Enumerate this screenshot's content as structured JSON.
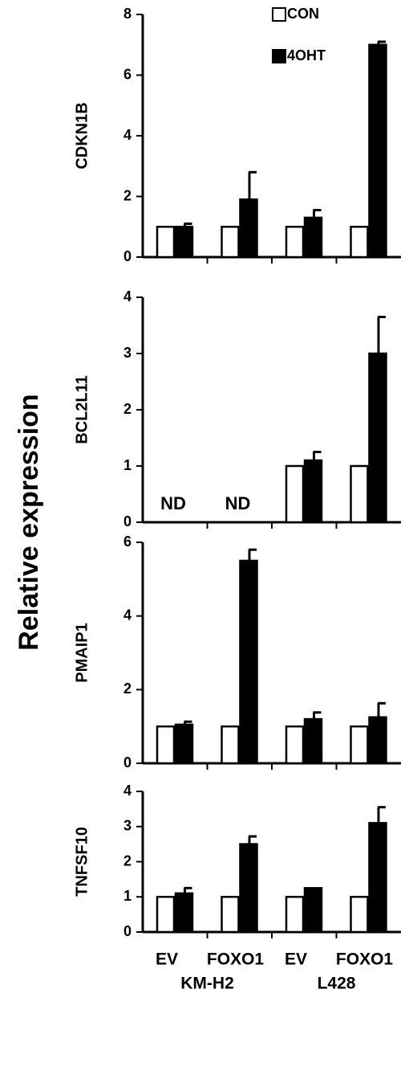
{
  "ylabel": "Relative expression",
  "chart_data": [
    {
      "type": "bar",
      "ylabel": "CDKN1B",
      "ylim": [
        0,
        8
      ],
      "yticks": [
        0,
        2,
        4,
        6,
        8
      ],
      "series": [
        {
          "name": "CON",
          "color": "#ffffff",
          "values": [
            1,
            1,
            1,
            1
          ]
        },
        {
          "name": "4OHT",
          "color": "#000000",
          "values": [
            1.0,
            1.9,
            1.3,
            7.0
          ],
          "errors": [
            0.1,
            0.9,
            0.25,
            0.1
          ]
        }
      ]
    },
    {
      "type": "bar",
      "ylabel": "BCL2L11",
      "ylim": [
        0,
        4
      ],
      "yticks": [
        0,
        1,
        2,
        3,
        4
      ],
      "annotations": [
        "ND",
        "ND"
      ],
      "series": [
        {
          "color": "#ffffff",
          "values": [
            null,
            null,
            1,
            1
          ]
        },
        {
          "color": "#000000",
          "values": [
            null,
            null,
            1.1,
            3.0
          ],
          "errors": [
            null,
            null,
            0.15,
            0.65
          ]
        }
      ]
    },
    {
      "type": "bar",
      "ylabel": "PMAIP1",
      "ylim": [
        0,
        6
      ],
      "yticks": [
        0,
        2,
        4,
        6
      ],
      "series": [
        {
          "color": "#ffffff",
          "values": [
            1,
            1,
            1,
            1
          ]
        },
        {
          "color": "#000000",
          "values": [
            1.05,
            5.5,
            1.2,
            1.25
          ],
          "errors": [
            0.08,
            0.3,
            0.18,
            0.38
          ]
        }
      ]
    },
    {
      "type": "bar",
      "ylabel": "TNFSF10",
      "ylim": [
        0,
        4
      ],
      "yticks": [
        0,
        1,
        2,
        3,
        4
      ],
      "categories": [
        "EV",
        "FOXO1",
        "EV",
        "FOXO1"
      ],
      "groups": [
        "KM-H2",
        "L428"
      ],
      "series": [
        {
          "color": "#ffffff",
          "values": [
            1,
            1,
            1,
            1
          ]
        },
        {
          "color": "#000000",
          "values": [
            1.1,
            2.5,
            1.25,
            3.1
          ],
          "errors": [
            0.15,
            0.22,
            null,
            0.45
          ]
        }
      ]
    }
  ]
}
